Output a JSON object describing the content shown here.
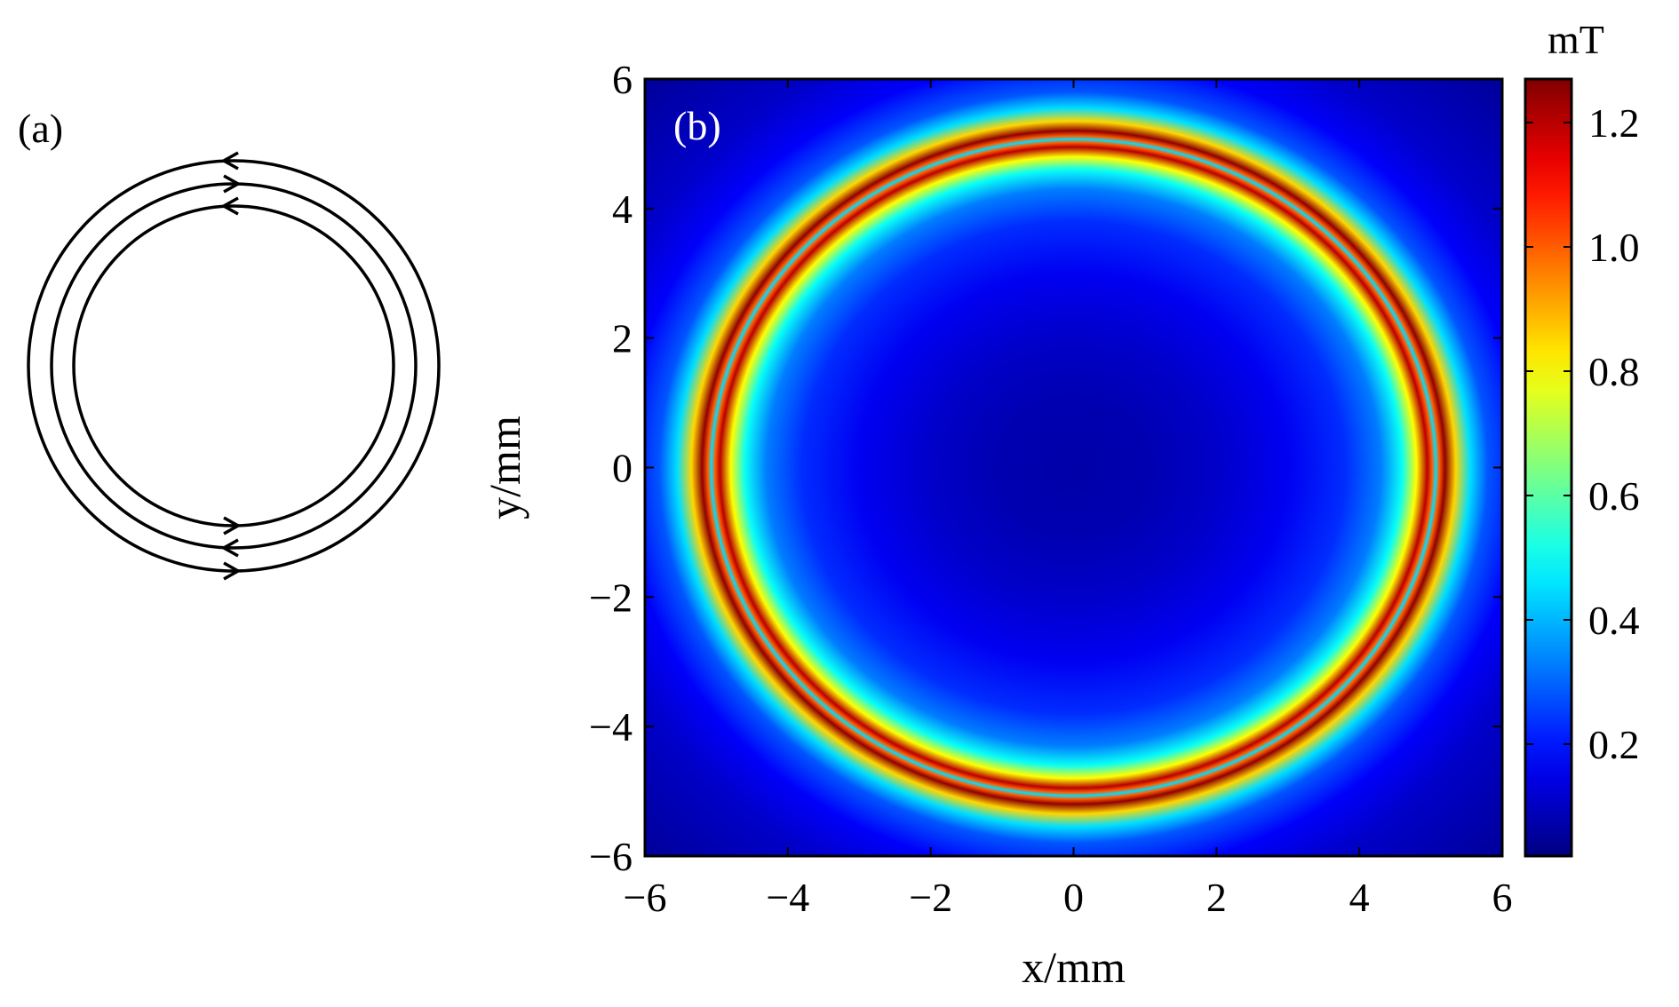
{
  "panel_a": {
    "label": "(a)"
  },
  "chart_data": {
    "type": "heatmap",
    "panel_label": "(b)",
    "x_label": "x/mm",
    "y_label": "y/mm",
    "colorbar_label": "mT",
    "colormap": "jet",
    "xlim": [
      -6,
      6
    ],
    "ylim": [
      -6,
      6
    ],
    "xticks": [
      {
        "value": -6,
        "label": "−6"
      },
      {
        "value": -4,
        "label": "−4"
      },
      {
        "value": -2,
        "label": "−2"
      },
      0,
      2,
      4,
      6
    ],
    "yticks": [
      {
        "value": -6,
        "label": "−6"
      },
      {
        "value": -4,
        "label": "−4"
      },
      {
        "value": -2,
        "label": "−2"
      },
      0,
      2,
      4,
      6
    ],
    "clim": [
      0.02,
      1.27
    ],
    "cticks": [
      0.2,
      0.4,
      0.6,
      0.8,
      {
        "value": 1,
        "label": "1.0"
      },
      1.2
    ],
    "x": [
      0,
      1,
      2,
      3,
      3.8,
      4.3,
      4.6,
      4.8,
      4.95,
      5.02,
      5.07,
      5.12,
      5.2,
      5.35,
      5.55,
      5.8,
      6.3,
      7,
      8.5
    ],
    "values": [
      0.07,
      0.08,
      0.11,
      0.16,
      0.23,
      0.33,
      0.5,
      0.8,
      1.2,
      1.0,
      0.45,
      1.0,
      1.25,
      0.85,
      0.45,
      0.28,
      0.17,
      0.11,
      0.05
    ]
  }
}
